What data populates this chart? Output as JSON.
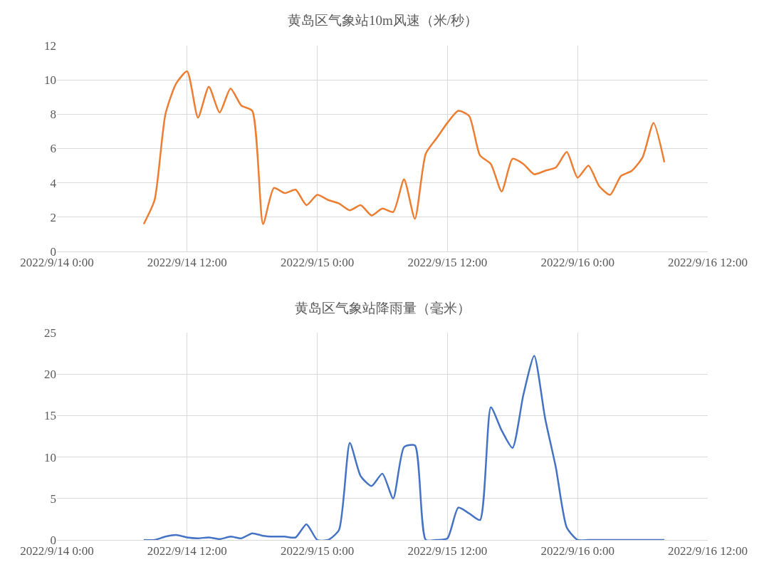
{
  "chart_data": [
    {
      "type": "line",
      "title": "黄岛区气象站10m风速（米/秒）",
      "grid": true,
      "x": [
        "2022-09-14T08:00",
        "2022-09-14T09:00",
        "2022-09-14T10:00",
        "2022-09-14T11:00",
        "2022-09-14T12:00",
        "2022-09-14T13:00",
        "2022-09-14T14:00",
        "2022-09-14T15:00",
        "2022-09-14T16:00",
        "2022-09-14T17:00",
        "2022-09-14T18:00",
        "2022-09-14T19:00",
        "2022-09-14T20:00",
        "2022-09-14T21:00",
        "2022-09-14T22:00",
        "2022-09-14T23:00",
        "2022-09-15T00:00",
        "2022-09-15T01:00",
        "2022-09-15T02:00",
        "2022-09-15T03:00",
        "2022-09-15T04:00",
        "2022-09-15T05:00",
        "2022-09-15T06:00",
        "2022-09-15T07:00",
        "2022-09-15T08:00",
        "2022-09-15T09:00",
        "2022-09-15T10:00",
        "2022-09-15T11:00",
        "2022-09-15T12:00",
        "2022-09-15T13:00",
        "2022-09-15T14:00",
        "2022-09-15T15:00",
        "2022-09-15T16:00",
        "2022-09-15T17:00",
        "2022-09-15T18:00",
        "2022-09-15T19:00",
        "2022-09-15T20:00",
        "2022-09-15T21:00",
        "2022-09-15T22:00",
        "2022-09-15T23:00",
        "2022-09-16T00:00",
        "2022-09-16T01:00",
        "2022-09-16T02:00",
        "2022-09-16T03:00",
        "2022-09-16T04:00",
        "2022-09-16T05:00",
        "2022-09-16T06:00",
        "2022-09-16T07:00",
        "2022-09-16T08:00"
      ],
      "series": [
        {
          "color": "#ed7d31",
          "values": [
            1.6,
            3.0,
            8.0,
            9.8,
            10.5,
            7.8,
            9.6,
            8.1,
            9.5,
            8.5,
            8.2,
            1.6,
            3.7,
            3.4,
            3.6,
            2.7,
            3.3,
            3.0,
            2.8,
            2.4,
            2.7,
            2.1,
            2.5,
            2.3,
            4.2,
            1.9,
            5.7,
            6.6,
            7.5,
            8.2,
            7.9,
            5.6,
            5.1,
            3.5,
            5.4,
            5.1,
            4.5,
            4.7,
            4.9,
            5.8,
            4.3,
            5.0,
            3.8,
            3.3,
            4.4,
            4.7,
            5.5,
            7.5,
            5.2
          ]
        }
      ],
      "xlim": [
        "2022-09-14T00:00",
        "2022-09-16T12:00"
      ],
      "xticks": [
        {
          "value": "2022-09-14T00:00",
          "label": "2022/9/14 0:00"
        },
        {
          "value": "2022-09-14T12:00",
          "label": "2022/9/14 12:00"
        },
        {
          "value": "2022-09-15T00:00",
          "label": "2022/9/15 0:00"
        },
        {
          "value": "2022-09-15T12:00",
          "label": "2022/9/15 12:00"
        },
        {
          "value": "2022-09-16T00:00",
          "label": "2022/9/16 0:00"
        },
        {
          "value": "2022-09-16T12:00",
          "label": "2022/9/16 12:00"
        }
      ],
      "ylim": [
        0,
        12
      ],
      "yticks": [
        0,
        2,
        4,
        6,
        8,
        10,
        12
      ]
    },
    {
      "type": "line",
      "title": "黄岛区气象站降雨量（毫米）",
      "grid": true,
      "x": [
        "2022-09-14T08:00",
        "2022-09-14T09:00",
        "2022-09-14T10:00",
        "2022-09-14T11:00",
        "2022-09-14T12:00",
        "2022-09-14T13:00",
        "2022-09-14T14:00",
        "2022-09-14T15:00",
        "2022-09-14T16:00",
        "2022-09-14T17:00",
        "2022-09-14T18:00",
        "2022-09-14T19:00",
        "2022-09-14T20:00",
        "2022-09-14T21:00",
        "2022-09-14T22:00",
        "2022-09-14T23:00",
        "2022-09-15T00:00",
        "2022-09-15T01:00",
        "2022-09-15T02:00",
        "2022-09-15T03:00",
        "2022-09-15T04:00",
        "2022-09-15T05:00",
        "2022-09-15T06:00",
        "2022-09-15T07:00",
        "2022-09-15T08:00",
        "2022-09-15T09:00",
        "2022-09-15T10:00",
        "2022-09-15T11:00",
        "2022-09-15T12:00",
        "2022-09-15T13:00",
        "2022-09-15T14:00",
        "2022-09-15T15:00",
        "2022-09-15T16:00",
        "2022-09-15T17:00",
        "2022-09-15T18:00",
        "2022-09-15T19:00",
        "2022-09-15T20:00",
        "2022-09-15T21:00",
        "2022-09-15T22:00",
        "2022-09-15T23:00",
        "2022-09-16T00:00",
        "2022-09-16T01:00",
        "2022-09-16T02:00",
        "2022-09-16T03:00",
        "2022-09-16T04:00",
        "2022-09-16T05:00",
        "2022-09-16T06:00",
        "2022-09-16T07:00",
        "2022-09-16T08:00"
      ],
      "series": [
        {
          "color": "#4472c4",
          "values": [
            0,
            0,
            0.4,
            0.6,
            0.3,
            0.2,
            0.3,
            0.1,
            0.4,
            0.2,
            0.8,
            0.5,
            0.4,
            0.4,
            0.3,
            1.9,
            0,
            0,
            1.2,
            11.7,
            7.7,
            6.5,
            8.0,
            5.0,
            11.2,
            11.4,
            0,
            0,
            0.2,
            3.9,
            3.2,
            2.4,
            16.0,
            13.2,
            11.1,
            17.5,
            22.2,
            14.7,
            8.7,
            1.5,
            0,
            0,
            0,
            0,
            0,
            0,
            0,
            0,
            0
          ]
        }
      ],
      "xlim": [
        "2022-09-14T00:00",
        "2022-09-16T12:00"
      ],
      "xticks": [
        {
          "value": "2022-09-14T00:00",
          "label": "2022/9/14 0:00"
        },
        {
          "value": "2022-09-14T12:00",
          "label": "2022/9/14 12:00"
        },
        {
          "value": "2022-09-15T00:00",
          "label": "2022/9/15 0:00"
        },
        {
          "value": "2022-09-15T12:00",
          "label": "2022/9/15 12:00"
        },
        {
          "value": "2022-09-16T00:00",
          "label": "2022/9/16 0:00"
        },
        {
          "value": "2022-09-16T12:00",
          "label": "2022/9/16 12:00"
        }
      ],
      "ylim": [
        0,
        25
      ],
      "yticks": [
        0,
        5,
        10,
        15,
        20,
        25
      ]
    }
  ]
}
